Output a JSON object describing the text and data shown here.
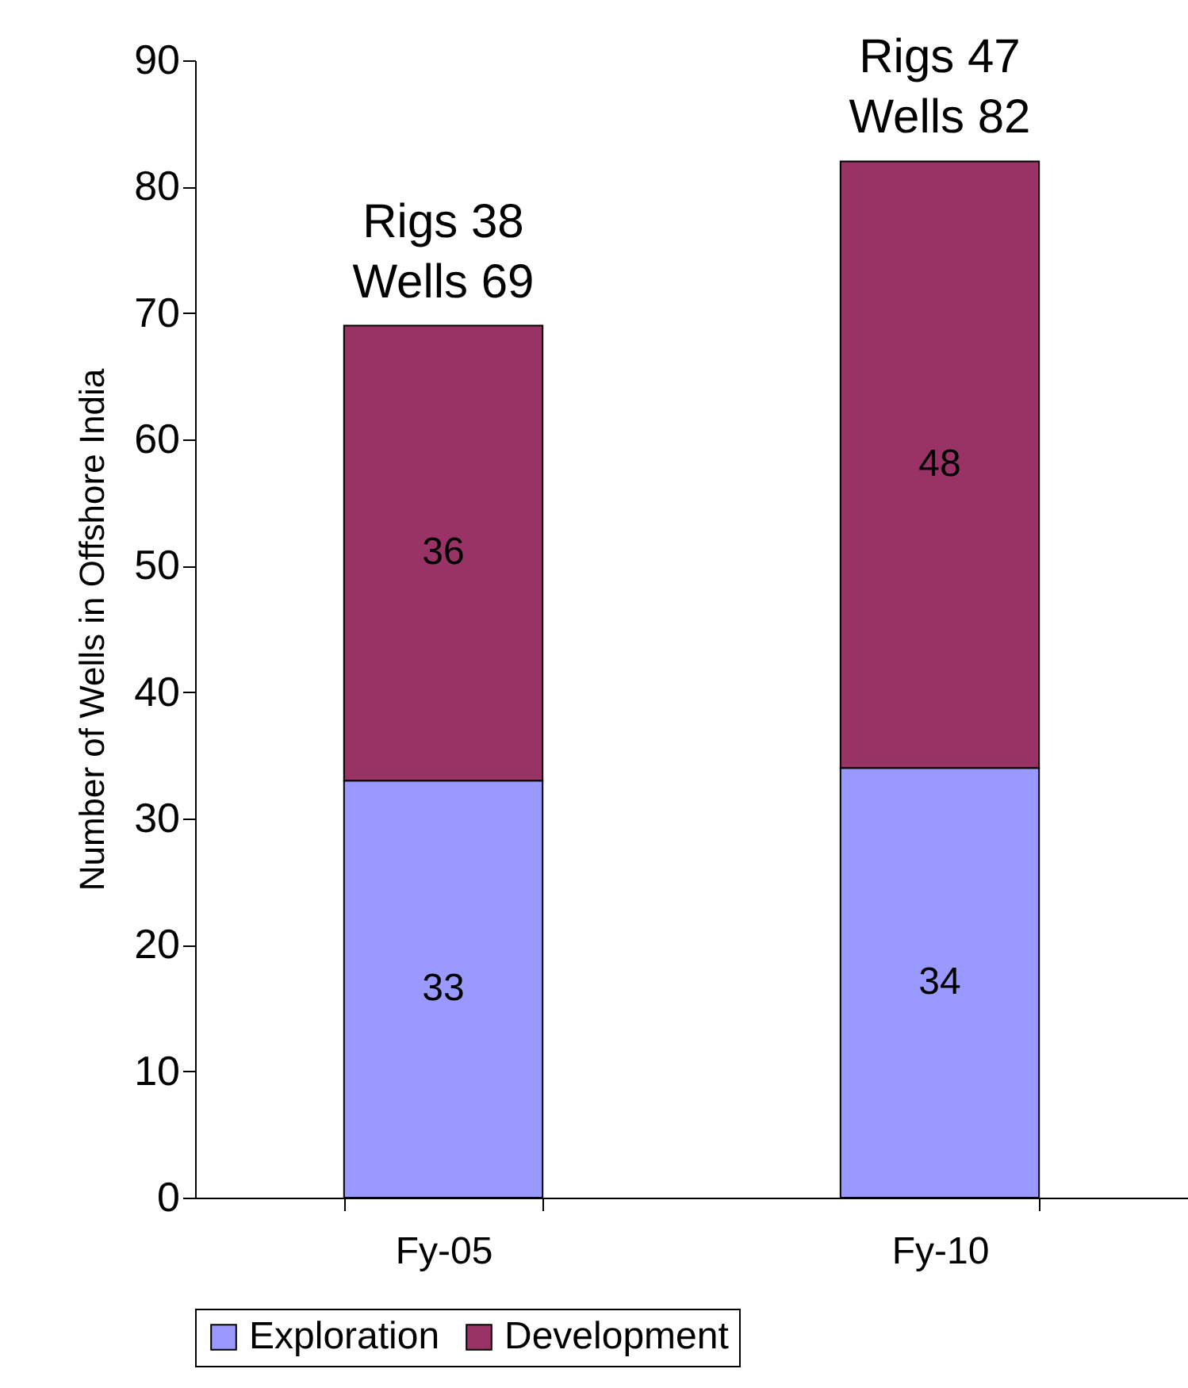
{
  "chart_data": {
    "type": "bar",
    "stacked": true,
    "ylabel": "Number of Wells in Offshore India",
    "categories": [
      "Fy-05",
      "Fy-10"
    ],
    "series": [
      {
        "name": "Exploration",
        "color": "#9999ff",
        "values": [
          33,
          34
        ]
      },
      {
        "name": "Development",
        "color": "#993366",
        "values": [
          36,
          48
        ]
      }
    ],
    "data_labels": true,
    "annotations": [
      {
        "text": "Rigs 38\nWells 69",
        "x": "Fy-05",
        "y": 69
      },
      {
        "text": "Rigs 47\nWells 82",
        "x": "Fy-10",
        "y": 82
      }
    ],
    "ylim": [
      0,
      90
    ],
    "yticks": [
      0,
      10,
      20,
      30,
      40,
      50,
      60,
      70,
      80,
      90
    ],
    "grid": false,
    "legend": "bottom"
  }
}
